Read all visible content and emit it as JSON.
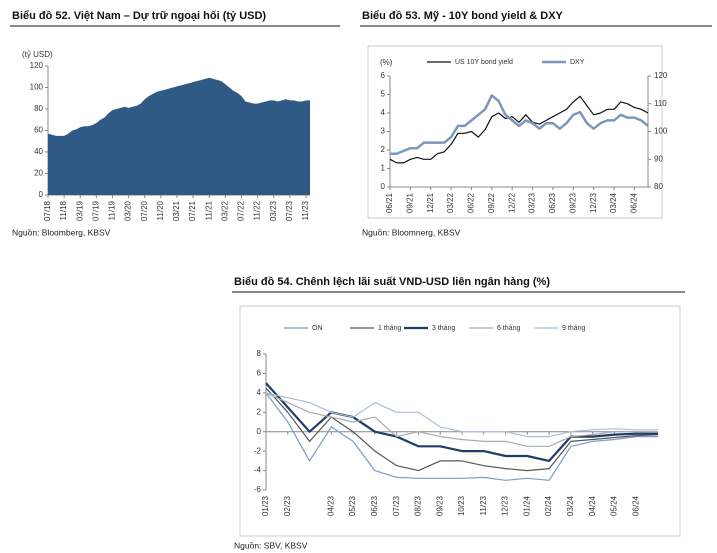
{
  "chart_data": [
    {
      "type": "area",
      "title": "Biểu đồ 52. Việt Nam – Dự trữ ngoại hối (tỷ USD)",
      "y_label": "(tỷ USD)",
      "source": "Nguồn: Bloomberg, KBSV",
      "categories": [
        "07/18",
        null,
        null,
        null,
        "11/18",
        null,
        null,
        null,
        "03/19",
        null,
        null,
        null,
        "07/19",
        null,
        null,
        null,
        "11/19",
        null,
        null,
        null,
        "03/20",
        null,
        null,
        null,
        "07/20",
        null,
        null,
        null,
        "11/20",
        null,
        null,
        null,
        "03/21",
        null,
        null,
        null,
        "07/21",
        null,
        null,
        null,
        "11/21",
        null,
        null,
        null,
        "03/22",
        null,
        null,
        null,
        "07/22",
        null,
        null,
        null,
        "11/22",
        null,
        null,
        null,
        "03/23",
        null,
        null,
        null,
        "07/23",
        null,
        null,
        null,
        "11/23",
        null
      ],
      "values": [
        57,
        56,
        55,
        55,
        55,
        57,
        60,
        61,
        63,
        64,
        64,
        65,
        67,
        70,
        72,
        76,
        79,
        80,
        81,
        82,
        81,
        82,
        83,
        85,
        89,
        92,
        94,
        96,
        97,
        98,
        99,
        100,
        101,
        102,
        103,
        104,
        105,
        106,
        107,
        108,
        109,
        108,
        107,
        106,
        103,
        100,
        97,
        95,
        92,
        87,
        86,
        85,
        85,
        86,
        87,
        88,
        88,
        87,
        88,
        89,
        88,
        88,
        87,
        87,
        88,
        88
      ],
      "color": "#2e5a85",
      "ylim": [
        0,
        120
      ],
      "yticks": [
        0,
        20,
        40,
        60,
        80,
        100,
        120
      ]
    },
    {
      "type": "line",
      "title": "Biểu đồ 53. Mỹ - 10Y bond yield & DXY",
      "y_label": "(%)",
      "source": "Nguồn: Bloomnerg, KBSV",
      "categories": [
        "06/21",
        null,
        null,
        "09/21",
        null,
        null,
        "12/21",
        null,
        null,
        "03/22",
        null,
        null,
        "06/22",
        null,
        null,
        "09/22",
        null,
        null,
        "12/22",
        null,
        null,
        "03/23",
        null,
        null,
        "06/23",
        null,
        null,
        "09/23",
        null,
        null,
        "12/23",
        null,
        null,
        "03/24",
        null,
        null,
        "06/24",
        null,
        null
      ],
      "series": [
        {
          "name": "US 10Y bond yield",
          "color": "#111111",
          "values": [
            1.5,
            1.3,
            1.3,
            1.5,
            1.6,
            1.5,
            1.5,
            1.8,
            1.9,
            2.3,
            2.9,
            2.9,
            3.0,
            2.7,
            3.1,
            3.8,
            4.0,
            3.7,
            3.8,
            3.5,
            3.9,
            3.5,
            3.4,
            3.6,
            3.8,
            4.0,
            4.2,
            4.6,
            4.9,
            4.4,
            3.9,
            4.0,
            4.2,
            4.2,
            4.6,
            4.5,
            4.3,
            4.2,
            4.0
          ]
        },
        {
          "name": "DXY",
          "color": "#7b97bd",
          "axis": "y2",
          "values": [
            92,
            92,
            93,
            94,
            94,
            96,
            96,
            96,
            96,
            98,
            102,
            102,
            104,
            106,
            108,
            113,
            111,
            106,
            104,
            102,
            104,
            103,
            101,
            103,
            103,
            101,
            103,
            106,
            107,
            103,
            101,
            103,
            104,
            104,
            106,
            105,
            105,
            104,
            102
          ]
        }
      ],
      "ylim": [
        0,
        6
      ],
      "yticks": [
        0,
        1,
        2,
        3,
        4,
        5,
        6
      ],
      "y2lim": [
        80,
        120
      ],
      "y2ticks": [
        80,
        90,
        100,
        110,
        120
      ]
    },
    {
      "type": "line",
      "title": "Biểu đồ 54. Chênh lệch lãi suất VND-USD liên ngân hàng (%)",
      "source": "Nguồn: SBV, KBSV",
      "categories": [
        "01/23",
        "02/23",
        null,
        "04/23",
        "05/23",
        "06/23",
        "07/23",
        "08/23",
        "09/23",
        "10/23",
        "11/23",
        "12/23",
        "01/24",
        "02/24",
        "03/24",
        "04/24",
        "05/24",
        "06/24",
        null
      ],
      "series": [
        {
          "name": "ON",
          "color": "#7a9cc6",
          "values": [
            4,
            1,
            -3,
            0.5,
            -1,
            -4,
            -4.7,
            -4.8,
            -4.8,
            -4.8,
            -4.7,
            -5,
            -4.8,
            -5,
            -1.5,
            -1,
            -0.8,
            -0.5,
            -0.5
          ]
        },
        {
          "name": "1 tháng",
          "color": "#555555",
          "values": [
            4.5,
            2,
            -1,
            1.5,
            0,
            -2,
            -3.5,
            -4,
            -3,
            -3,
            -3.5,
            -3.8,
            -4,
            -3.8,
            -1,
            -0.8,
            -0.6,
            -0.4,
            -0.3
          ]
        },
        {
          "name": "3 tháng",
          "color": "#1f3d6b",
          "values": [
            5,
            2.5,
            0,
            2,
            1.5,
            0,
            -0.5,
            -1.5,
            -1.5,
            -2,
            -2,
            -2.5,
            -2.5,
            -3,
            -0.5,
            -0.5,
            -0.3,
            -0.2,
            -0.2
          ]
        },
        {
          "name": "6 tháng",
          "color": "#aaaaaa",
          "values": [
            4,
            3,
            2,
            1.5,
            1,
            1.5,
            -0.5,
            0,
            -0.5,
            -0.8,
            -1,
            -1,
            -1.5,
            -1.5,
            -0.5,
            -0.3,
            0,
            0,
            0
          ]
        },
        {
          "name": "9 tháng",
          "color": "#a9bdd6",
          "values": [
            4,
            3.5,
            3,
            2,
            1.5,
            3,
            2,
            2,
            0.5,
            0,
            0,
            0,
            -0.5,
            -0.5,
            0,
            0.2,
            0.3,
            0.2,
            0.2
          ]
        }
      ],
      "ylim": [
        -6,
        8
      ],
      "yticks": [
        -6,
        -4,
        -2,
        0,
        2,
        4,
        6,
        8
      ]
    }
  ]
}
